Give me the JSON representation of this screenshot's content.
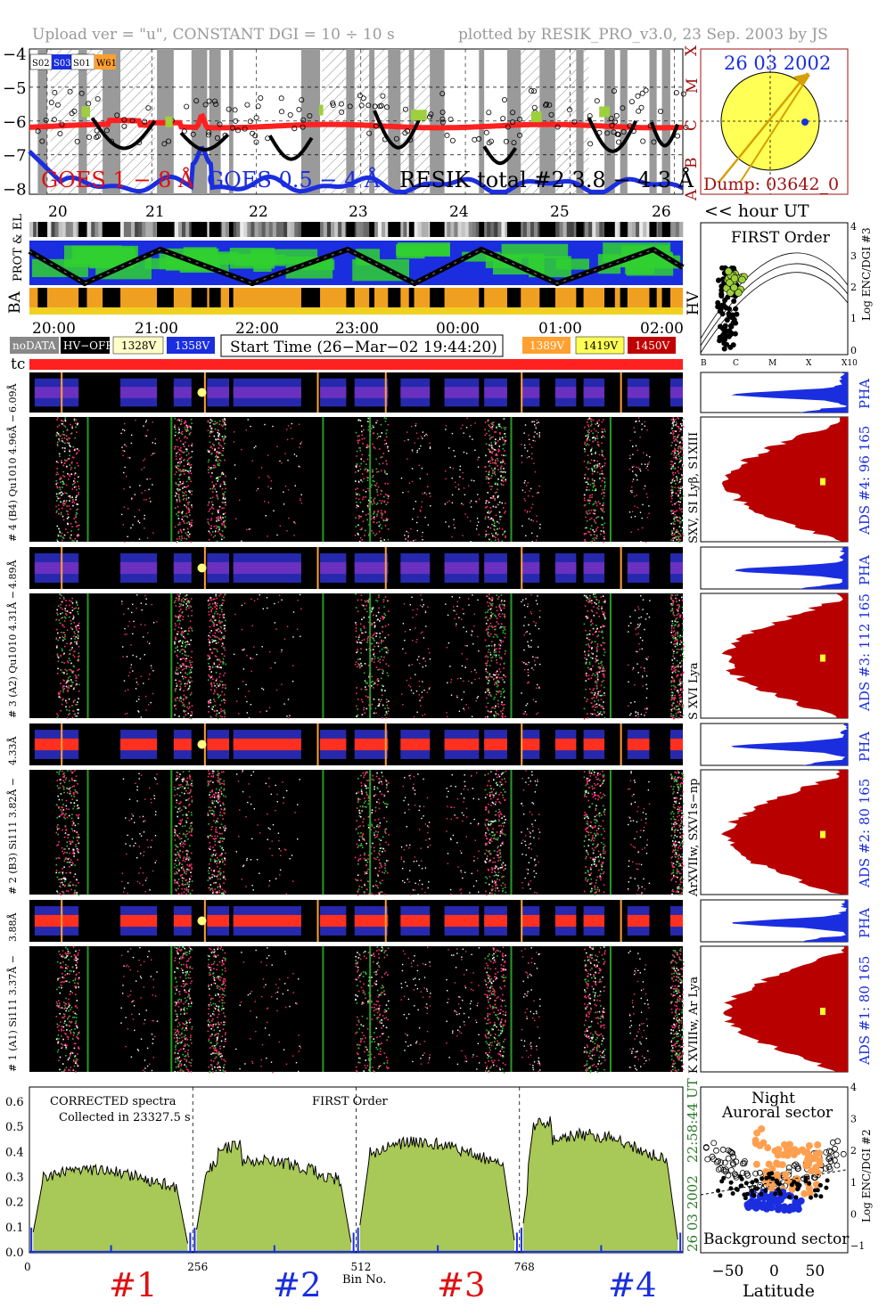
{
  "header": {
    "left": "Upload ver = \"u\", CONSTANT  DGI =  10 ÷  10 s",
    "right": "plotted by RESIK_PRO_v3.0, 23 Sep. 2003 by JS"
  },
  "goes": {
    "y_ticks": [
      "−4",
      "−5",
      "−6",
      "−7",
      "−8"
    ],
    "class_labels": [
      "X",
      "M",
      "C",
      "B",
      "A"
    ],
    "legend_left": "GOES 1 − 8 Å",
    "legend_mid": "GOES 0.5 − 4 Å",
    "legend_right": "RESIK total #2  3.8 − 4.3 Å",
    "status_tags": [
      "S02",
      "S03",
      "S01",
      "W61"
    ],
    "colors": {
      "goes_long": "#ff2020",
      "goes_short": "#1a2ee0",
      "resik": "#000000",
      "flag": "#9ecf3c"
    }
  },
  "sun": {
    "date": "26 03 2002",
    "dump": "Dump: 03642_0",
    "colors": {
      "disk": "#ffff55",
      "arrow": "#d6a000"
    }
  },
  "orbit": {
    "day_ticks": [
      "20",
      "21",
      "22",
      "23",
      "24",
      "25",
      "26"
    ],
    "hour_label": "<< hour UT",
    "row_labels": [
      "PROT & EL",
      "BA",
      "HV"
    ],
    "hour_ticks": [
      "20:00",
      "21:00",
      "22:00",
      "23:00",
      "00:00",
      "01:00",
      "02:00"
    ]
  },
  "legend": {
    "nodata": "noDATA",
    "hvoff": "HV−OFF",
    "v1328": "1328V",
    "v1358": "1358V",
    "start_time": "Start Time (26−Mar−02 19:44:20)",
    "v1389": "1389V",
    "v1419": "1419V",
    "v1450": "1450V"
  },
  "tc_label": "tc",
  "first_order": {
    "title": "FIRST Order",
    "y_ticks": [
      "4",
      "3",
      "2",
      "1",
      "0"
    ],
    "y_label": "Log ENC/DGI #3",
    "x_ticks": [
      "B",
      "C",
      "M",
      "X",
      "X10"
    ]
  },
  "channels": [
    {
      "pha_label": "6.09Å",
      "spec_label": "# 4 (B4) Qu1010 4.96Å −",
      "lines": "SXV, SI Lyβ, S1XIII",
      "ads": "ADS #4:   96 165",
      "pha": "PHA"
    },
    {
      "pha_label": "4.89Å",
      "spec_label": "# 3 (A2) Qu1010  4.31Å −",
      "lines": "S XVI Lya",
      "ads": "ADS #3:   112 165",
      "pha": "PHA"
    },
    {
      "pha_label": "4.33Å",
      "spec_label": "# 2 (B3) Si111  3.82Å −",
      "lines": "ArXVIIw, SXV1s−np",
      "ads": "ADS #2:   80 165",
      "pha": "PHA"
    },
    {
      "pha_label": "3.88Å",
      "spec_label": "# 1 (A1) Si111  3.37Å −",
      "lines": "K XVIIIw, Ar Lya",
      "ads": "ADS #1:   80 165",
      "pha": "PHA"
    }
  ],
  "spectra": {
    "title1": "CORRECTED spectra",
    "title2": "Collected in 23327.5 s",
    "title3": "FIRST Order",
    "date_vert": "26 03 2002",
    "time_vert": "22:58:44 UT",
    "y_ticks": [
      "0.6",
      "0.5",
      "0.4",
      "0.3",
      "0.2",
      "0.1",
      "0.0"
    ],
    "x_ticks": [
      "0",
      "256",
      "512",
      "768"
    ],
    "x_label": "Bin No.",
    "segment_labels": [
      "#1",
      "#2",
      "#3",
      "#4"
    ],
    "colors": {
      "fill": "#a8c857",
      "line": "#000000",
      "bg": "#1a2ee0",
      "red": "#e01010",
      "blue": "#1a2ee0"
    }
  },
  "latitude": {
    "top1": "Night",
    "top2": "Auroral sector",
    "bottom": "Background sector",
    "x_ticks": [
      "−50",
      "0",
      "50"
    ],
    "x_label": "Latitude",
    "y_ticks": [
      "4",
      "3",
      "2",
      "1",
      "0",
      "−1"
    ],
    "y_label": "Log ENC/DGI #2"
  }
}
